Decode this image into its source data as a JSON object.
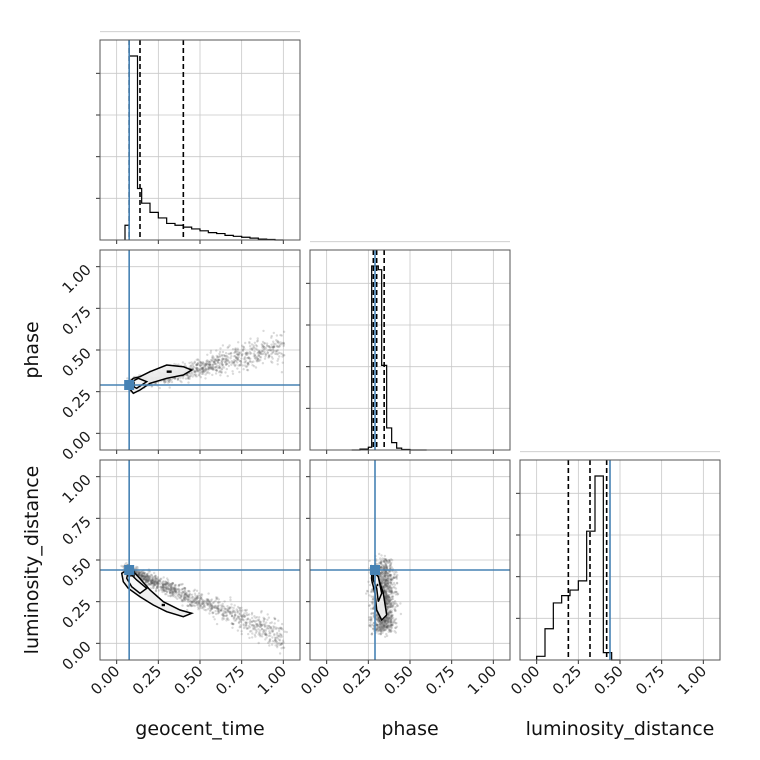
{
  "chart_data": {
    "type": "corner",
    "parameters": [
      "geocent_time",
      "phase",
      "luminosity_distance"
    ],
    "xlabels": [
      "geocent_time",
      "phase",
      "luminosity_distance"
    ],
    "ylabels": [
      "",
      "phase",
      "luminosity_distance"
    ],
    "range": [
      -0.1,
      1.1
    ],
    "ticks": [
      0.0,
      0.25,
      0.5,
      0.75,
      1.0
    ],
    "tick_labels": [
      "0.00",
      "0.25",
      "0.50",
      "0.75",
      "1.00"
    ],
    "truths": [
      0.075,
      0.29,
      0.44
    ],
    "grid": true,
    "colors": {
      "truth": "#4682b4",
      "hist": "#000000",
      "points": "#555555",
      "contour_fill": "#eeeeee",
      "grid": "#c8c8c8",
      "frame": "#555555"
    },
    "histograms": [
      {
        "param": "geocent_time",
        "bin_edges": [
          0.05,
          0.075,
          0.1,
          0.125,
          0.15,
          0.2,
          0.25,
          0.3,
          0.35,
          0.4,
          0.45,
          0.5,
          0.55,
          0.6,
          0.65,
          0.7,
          0.75,
          0.8,
          0.85,
          0.9,
          0.95,
          1.0
        ],
        "counts": [
          0.08,
          1.0,
          1.0,
          0.28,
          0.2,
          0.15,
          0.12,
          0.09,
          0.08,
          0.07,
          0.06,
          0.05,
          0.04,
          0.035,
          0.025,
          0.02,
          0.015,
          0.01,
          0.005,
          0.003,
          0.0
        ],
        "quantiles": [
          0.075,
          0.14,
          0.4
        ]
      },
      {
        "param": "phase",
        "bin_edges": [
          0.15,
          0.2,
          0.25,
          0.27,
          0.29,
          0.31,
          0.33,
          0.36,
          0.39,
          0.42,
          0.45,
          0.5,
          0.6
        ],
        "counts": [
          0.0,
          0.005,
          0.015,
          1.0,
          1.0,
          0.98,
          0.46,
          0.12,
          0.04,
          0.01,
          0.003,
          0.0
        ],
        "quantiles": [
          0.28,
          0.3,
          0.345
        ]
      },
      {
        "param": "luminosity_distance",
        "bin_edges": [
          0.0,
          0.05,
          0.1,
          0.15,
          0.2,
          0.25,
          0.3,
          0.35,
          0.4,
          0.45,
          0.5
        ],
        "counts": [
          0.02,
          0.17,
          0.31,
          0.35,
          0.38,
          0.43,
          0.7,
          1.0,
          0.04,
          0.0
        ],
        "quantiles": [
          0.19,
          0.32,
          0.42
        ]
      }
    ],
    "contours": [
      {
        "row": 1,
        "col": 0,
        "levels": [
          {
            "style": "outer",
            "points": [
              [
                0.06,
                0.29
              ],
              [
                0.1,
                0.24
              ],
              [
                0.14,
                0.26
              ],
              [
                0.2,
                0.3
              ],
              [
                0.3,
                0.33
              ],
              [
                0.4,
                0.35
              ],
              [
                0.45,
                0.38
              ],
              [
                0.4,
                0.4
              ],
              [
                0.3,
                0.41
              ],
              [
                0.2,
                0.37
              ],
              [
                0.14,
                0.34
              ],
              [
                0.1,
                0.33
              ]
            ]
          },
          {
            "style": "inner",
            "points": [
              [
                0.08,
                0.29
              ],
              [
                0.12,
                0.27
              ],
              [
                0.18,
                0.31
              ],
              [
                0.13,
                0.33
              ],
              [
                0.09,
                0.31
              ]
            ]
          }
        ],
        "blob": [
          [
            0.3,
            0.37
          ],
          [
            0.33,
            0.37
          ]
        ],
        "dense": [
          [
            0.05,
            0.28
          ],
          [
            0.11,
            0.31
          ]
        ]
      },
      {
        "row": 2,
        "col": 0,
        "levels": [
          {
            "style": "outer",
            "points": [
              [
                0.03,
                0.42
              ],
              [
                0.08,
                0.45
              ],
              [
                0.13,
                0.4
              ],
              [
                0.2,
                0.32
              ],
              [
                0.28,
                0.25
              ],
              [
                0.38,
                0.2
              ],
              [
                0.45,
                0.18
              ],
              [
                0.4,
                0.16
              ],
              [
                0.3,
                0.19
              ],
              [
                0.22,
                0.23
              ],
              [
                0.14,
                0.28
              ],
              [
                0.07,
                0.33
              ],
              [
                0.04,
                0.37
              ]
            ]
          },
          {
            "style": "inner",
            "points": [
              [
                0.07,
                0.43
              ],
              [
                0.12,
                0.38
              ],
              [
                0.18,
                0.33
              ],
              [
                0.14,
                0.3
              ],
              [
                0.09,
                0.34
              ],
              [
                0.06,
                0.39
              ]
            ]
          }
        ],
        "blob": [
          [
            0.27,
            0.23
          ],
          [
            0.29,
            0.23
          ]
        ],
        "dense": [
          [
            0.06,
            0.4
          ],
          [
            0.11,
            0.44
          ]
        ]
      },
      {
        "row": 2,
        "col": 1,
        "levels": [
          {
            "style": "outer",
            "points": [
              [
                0.27,
                0.46
              ],
              [
                0.3,
                0.42
              ],
              [
                0.34,
                0.3
              ],
              [
                0.36,
                0.17
              ],
              [
                0.33,
                0.14
              ],
              [
                0.3,
                0.2
              ],
              [
                0.29,
                0.3
              ],
              [
                0.27,
                0.38
              ]
            ]
          },
          {
            "style": "inner",
            "points": [
              [
                0.28,
                0.43
              ],
              [
                0.31,
                0.4
              ],
              [
                0.33,
                0.3
              ],
              [
                0.31,
                0.25
              ],
              [
                0.3,
                0.33
              ],
              [
                0.28,
                0.38
              ]
            ]
          }
        ],
        "blob": [
          [
            0.3,
            0.35
          ],
          [
            0.31,
            0.35
          ]
        ],
        "dense": [
          [
            0.27,
            0.41
          ],
          [
            0.31,
            0.44
          ]
        ]
      }
    ],
    "scatter": [
      {
        "row": 1,
        "col": 0,
        "kind": "sheet",
        "n": 1300,
        "x_range": [
          0.0,
          1.0
        ],
        "curve": {
          "start": [
            0.08,
            0.29
          ],
          "end": [
            1.0,
            0.52
          ]
        },
        "spread": 0.03
      },
      {
        "row": 2,
        "col": 0,
        "kind": "sheet",
        "n": 1300,
        "x_range": [
          0.0,
          1.0
        ],
        "curve": {
          "start": [
            0.06,
            0.44
          ],
          "end": [
            1.0,
            0.04
          ]
        },
        "spread": 0.03
      },
      {
        "row": 2,
        "col": 1,
        "kind": "cloud",
        "n": 1300,
        "x_range": [
          0.22,
          0.47
        ],
        "y_range": [
          0.04,
          0.5
        ]
      }
    ]
  }
}
